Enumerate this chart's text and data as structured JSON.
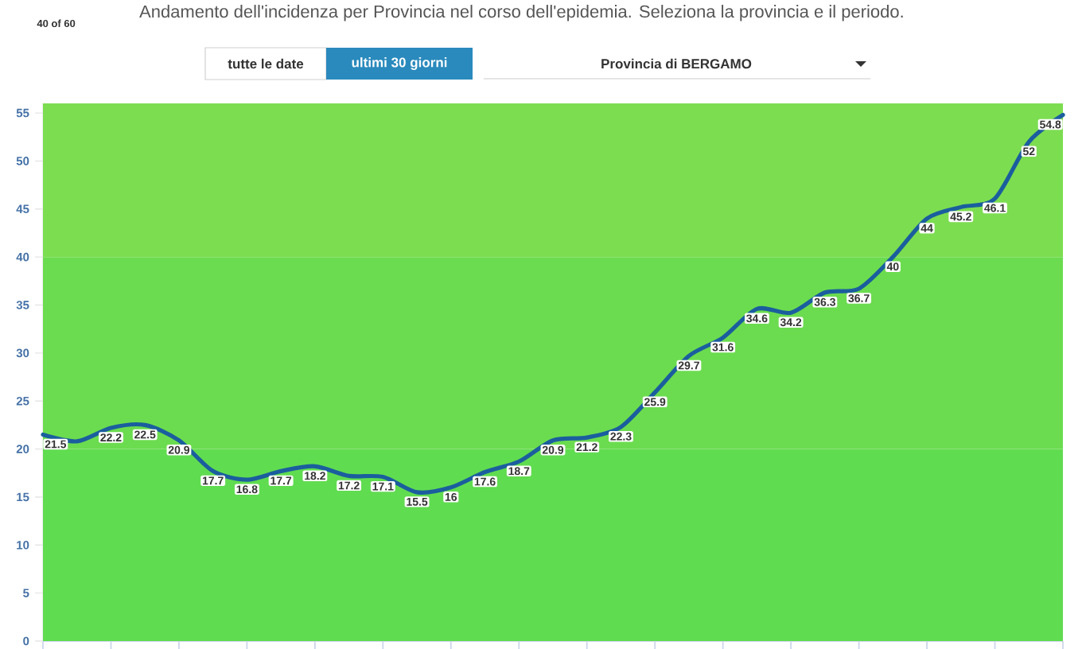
{
  "chart_data": {
    "type": "line",
    "title": "Andamento dell'incidenza per Provincia nel corso dell'epidemia. Seleziona la provincia e il periodo.",
    "annotations": [
      "40 of 60",
      "tutte le date",
      "ultimi 30 giorni",
      "Provincia di BERGAMO"
    ],
    "categories": [
      null,
      null,
      null,
      null,
      null,
      null,
      null,
      null,
      null,
      null,
      null,
      null,
      null,
      null,
      null,
      null,
      null,
      null,
      null,
      null,
      null,
      null,
      null,
      null,
      null,
      null,
      null,
      null,
      null,
      null,
      null
    ],
    "values": [
      21.5,
      20.8,
      22.2,
      22.5,
      20.9,
      17.7,
      16.8,
      17.7,
      18.2,
      17.2,
      17.1,
      15.5,
      16,
      17.6,
      18.7,
      20.9,
      21.2,
      22.3,
      25.9,
      29.7,
      31.6,
      34.6,
      34.2,
      36.3,
      36.7,
      40,
      44,
      45.2,
      46.1,
      52,
      54.8
    ],
    "value_labels": [
      "21.5",
      null,
      "22.2",
      "22.5",
      "20.9",
      "17.7",
      "16.8",
      "17.7",
      "18.2",
      "17.2",
      "17.1",
      "15.5",
      "16",
      "17.6",
      "18.7",
      "20.9",
      "21.2",
      "22.3",
      "25.9",
      "29.7",
      "31.6",
      "34.6",
      "34.2",
      "36.3",
      "36.7",
      "40",
      "44",
      "45.2",
      "46.1",
      "52",
      "54.8"
    ],
    "color": "#1b5e9e",
    "ylim": [
      0,
      56
    ],
    "yticks": [
      0,
      5,
      10,
      15,
      20,
      25,
      30,
      35,
      40,
      45,
      50,
      55
    ],
    "bands": [
      {
        "axis": "y",
        "from": 0,
        "to": 20,
        "color": "#60dc50"
      },
      {
        "axis": "y",
        "from": 20,
        "to": 40,
        "color": "#6bdc4f"
      },
      {
        "axis": "y",
        "from": 40,
        "to": 56,
        "color": "#7cdd51"
      }
    ],
    "marker": "none",
    "line_style": "solid",
    "tick_labels": "y"
  }
}
